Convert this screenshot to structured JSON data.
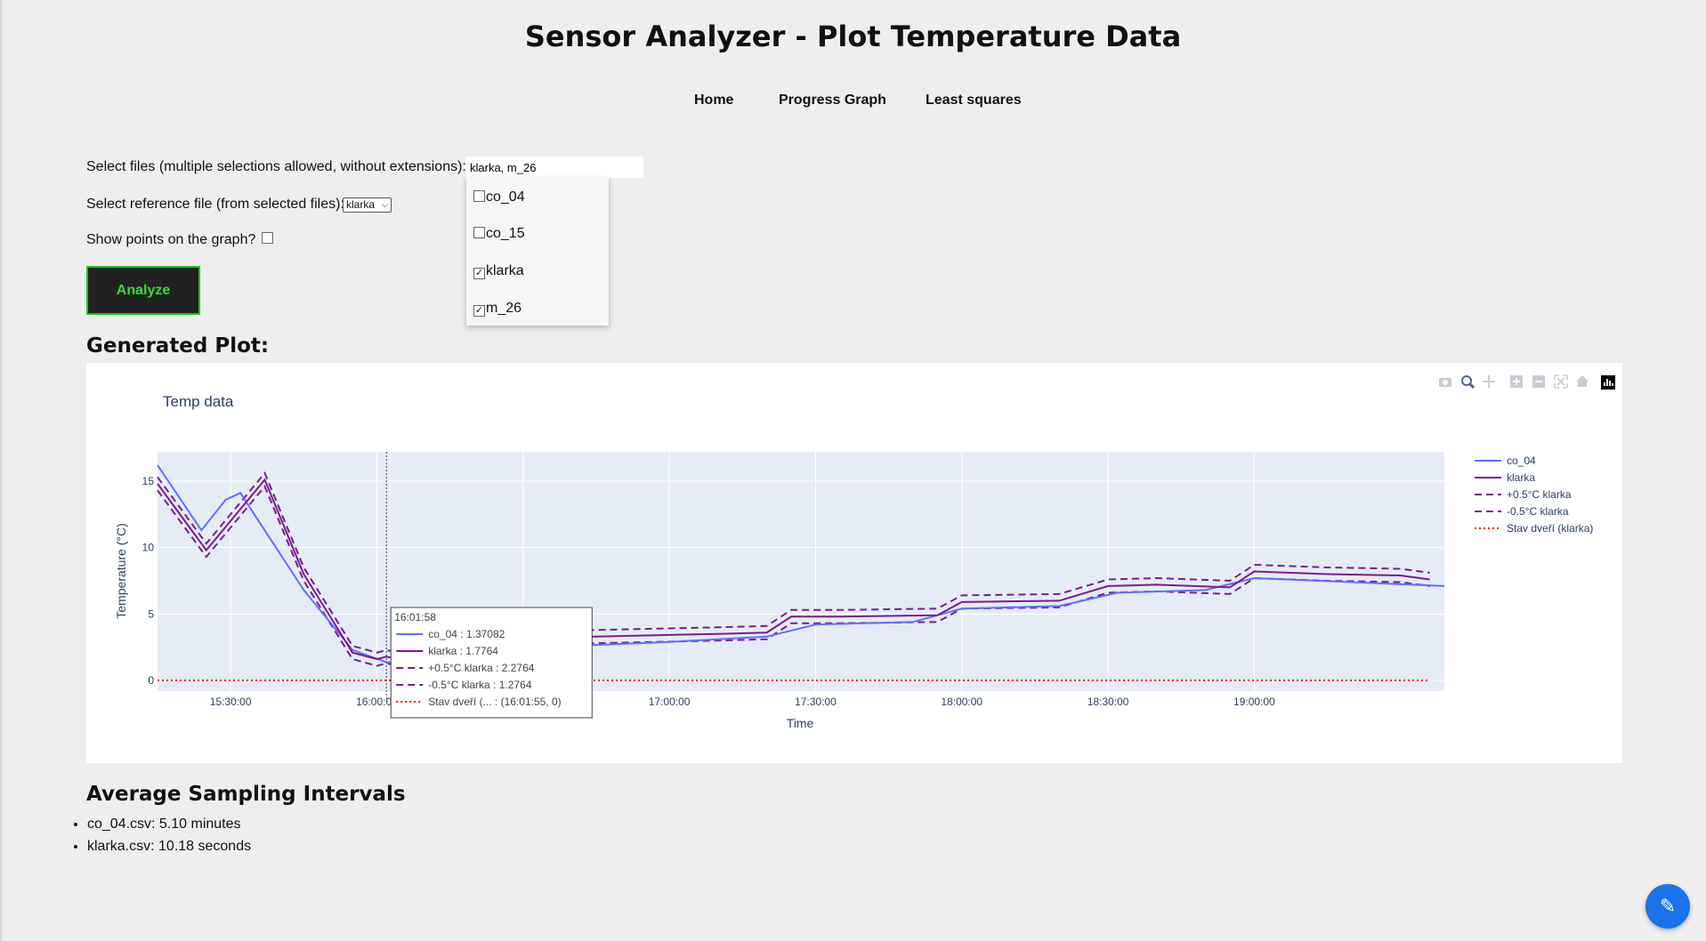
{
  "page": {
    "title": "Sensor Analyzer - Plot Temperature Data"
  },
  "nav": {
    "home": "Home",
    "progress": "Progress Graph",
    "least": "Least squares"
  },
  "form": {
    "files_label": "Select files (multiple selections allowed, without extensions):",
    "files_value": "klarka, m_26",
    "options": [
      {
        "label": "co_04",
        "checked": false
      },
      {
        "label": "co_15",
        "checked": false
      },
      {
        "label": "klarka",
        "checked": true
      },
      {
        "label": "m_26",
        "checked": true
      }
    ],
    "reference_label": "Select reference file (from selected files):",
    "reference_value": "klarka",
    "points_label": "Show points on the graph?",
    "analyze_label": "Analyze"
  },
  "plot_heading": "Generated Plot:",
  "chart_data": {
    "type": "line",
    "title": "Temp data",
    "xlabel": "Time",
    "ylabel": "Temperature (°C)",
    "x_ticks": [
      "15:30:00",
      "16:00:00",
      "16:30:00",
      "17:00:00",
      "17:30:00",
      "18:00:00",
      "18:30:00",
      "19:00:00"
    ],
    "y_ticks": [
      0,
      5,
      10,
      15
    ],
    "xlim": [
      "15:15:00",
      "19:39:00"
    ],
    "ylim": [
      -0.8,
      17.2
    ],
    "legend_position": "right",
    "series": [
      {
        "name": "co_04",
        "color": "#636efa",
        "dash": "solid",
        "points": [
          [
            "15:15:00",
            16.2
          ],
          [
            "15:24:00",
            11.3
          ],
          [
            "15:29:00",
            13.6
          ],
          [
            "15:32:00",
            14.1
          ],
          [
            "15:45:00",
            6.8
          ],
          [
            "15:55:00",
            2.3
          ],
          [
            "16:01:58",
            1.37
          ],
          [
            "16:20:00",
            1.0
          ],
          [
            "16:36:00",
            1.8
          ],
          [
            "16:40:00",
            2.6
          ],
          [
            "17:00:00",
            2.9
          ],
          [
            "17:20:00",
            3.3
          ],
          [
            "17:30:00",
            4.2
          ],
          [
            "17:50:00",
            4.4
          ],
          [
            "18:00:00",
            5.4
          ],
          [
            "18:20:00",
            5.6
          ],
          [
            "18:32:00",
            6.6
          ],
          [
            "18:50:00",
            6.8
          ],
          [
            "19:00:00",
            7.7
          ],
          [
            "19:20:00",
            7.4
          ],
          [
            "19:39:00",
            7.1
          ]
        ]
      },
      {
        "name": "klarka",
        "color": "#7b1b8f",
        "dash": "solid",
        "points": [
          [
            "15:15:00",
            14.8
          ],
          [
            "15:25:00",
            9.8
          ],
          [
            "15:37:00",
            15.1
          ],
          [
            "15:45:00",
            8.0
          ],
          [
            "15:55:00",
            2.1
          ],
          [
            "16:00:00",
            1.6
          ],
          [
            "16:01:58",
            1.78
          ],
          [
            "16:10:00",
            1.3
          ],
          [
            "16:25:00",
            1.6
          ],
          [
            "16:32:00",
            1.9
          ],
          [
            "16:35:00",
            3.2
          ],
          [
            "16:45:00",
            3.3
          ],
          [
            "17:10:00",
            3.5
          ],
          [
            "17:20:00",
            3.6
          ],
          [
            "17:25:00",
            4.8
          ],
          [
            "17:35:00",
            4.8
          ],
          [
            "17:55:00",
            4.9
          ],
          [
            "18:00:00",
            5.9
          ],
          [
            "18:20:00",
            6.0
          ],
          [
            "18:30:00",
            7.1
          ],
          [
            "18:40:00",
            7.2
          ],
          [
            "18:55:00",
            7.0
          ],
          [
            "19:00:00",
            8.2
          ],
          [
            "19:15:00",
            8.0
          ],
          [
            "19:30:00",
            7.9
          ],
          [
            "19:36:00",
            7.6
          ]
        ]
      },
      {
        "name": "+0.5°C klarka",
        "color": "#7b1b8f",
        "dash": "dash",
        "offset": 0.5
      },
      {
        "name": "-0.5°C klarka",
        "color": "#7b1b8f",
        "dash": "dash",
        "offset": -0.5
      },
      {
        "name": "Stav dveří (klarka)",
        "color": "#ff0000",
        "dash": "dot",
        "points": [
          [
            "15:15:00",
            0
          ],
          [
            "19:36:00",
            0
          ]
        ]
      }
    ],
    "hover": {
      "time": "16:01:58",
      "rows": [
        {
          "text": "co_04 : 1.37082",
          "color": "#636efa",
          "dash": "solid"
        },
        {
          "text": "klarka : 1.7764",
          "color": "#7b1b8f",
          "dash": "solid"
        },
        {
          "text": "+0.5°C klarka : 2.2764",
          "color": "#7b1b8f",
          "dash": "dash"
        },
        {
          "text": "-0.5°C klarka : 1.2764",
          "color": "#7b1b8f",
          "dash": "dash"
        },
        {
          "text": "Stav dveří (... : (16:01:55, 0)",
          "color": "#ff0000",
          "dash": "dot"
        }
      ]
    }
  },
  "toolbar_icons": [
    "camera-icon",
    "zoom-icon",
    "pan-icon",
    "zoom-in-icon",
    "zoom-out-icon",
    "autoscale-icon",
    "reset-icon",
    "plotly-logo-icon"
  ],
  "intervals_heading": "Average Sampling Intervals",
  "intervals": [
    "co_04.csv: 5.10 minutes",
    "klarka.csv: 10.18 seconds"
  ],
  "fab_icon": "edit-note-icon"
}
